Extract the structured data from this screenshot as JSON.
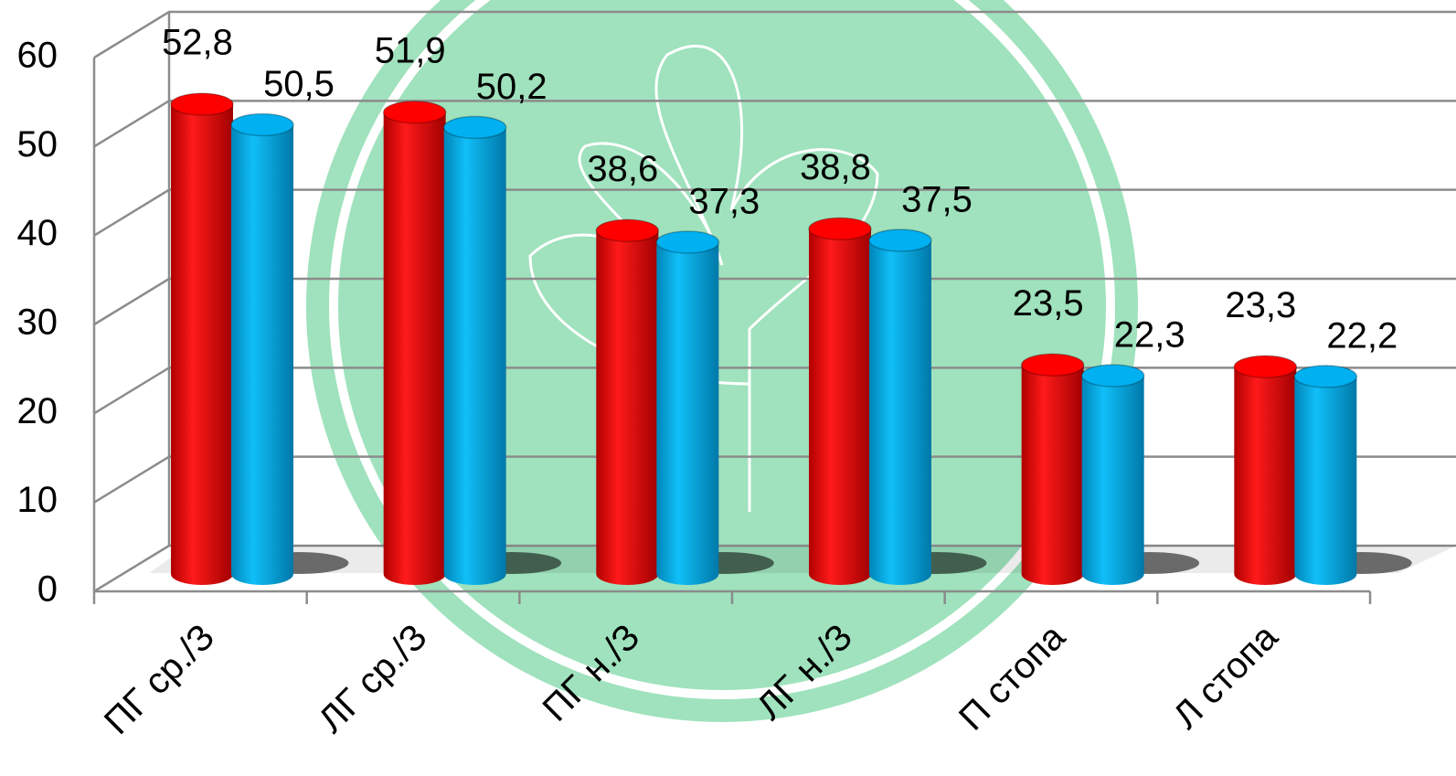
{
  "chart_data": {
    "type": "bar3d",
    "categories": [
      "ПГ ср./З",
      "ЛГ ср./З",
      "ПГ н./З",
      "ЛГ н./З",
      "П стопа",
      "Л стопа"
    ],
    "series": [
      {
        "color": "#ff0000",
        "values": [
          52.8,
          51.9,
          38.6,
          38.8,
          23.5,
          23.3
        ],
        "value_labels": [
          "52,8",
          "51,9",
          "38,6",
          "38,8",
          "23,5",
          "23,3"
        ]
      },
      {
        "color": "#00b0f0",
        "values": [
          50.5,
          50.2,
          37.3,
          37.5,
          22.3,
          22.2
        ],
        "value_labels": [
          "50,5",
          "50,2",
          "37,3",
          "37,5",
          "22,3",
          "22,2"
        ]
      }
    ],
    "ylim": [
      0,
      60
    ],
    "yticks": [
      0,
      10,
      20,
      30,
      40,
      50,
      60
    ],
    "grid": true
  }
}
